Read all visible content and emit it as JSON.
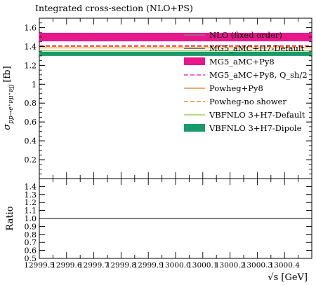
{
  "chart_data": {
    "type": "band",
    "title": "Integrated cross-section (NLO+PS)",
    "ylabel_main": "σ",
    "ylabel_sub": "pp→e⁺νμ⁺νjj",
    "ylabel_unit": "[fb]",
    "xlabel": "√s [GeV]",
    "ratio_ylabel": "Ratio",
    "xlim": [
      12999.5,
      13000.5
    ],
    "ylim": [
      0,
      1.7
    ],
    "ratio_ylim": [
      0.5,
      1.5
    ],
    "x_ticks": [
      "12999.5",
      "12999.6",
      "12999.7",
      "12999.8",
      "12999.9",
      "13000.0",
      "13000.1",
      "13000.2",
      "13000.3",
      "13000.4"
    ],
    "x_tick_values": [
      12999.5,
      12999.6,
      12999.7,
      12999.8,
      12999.9,
      13000.0,
      13000.1,
      13000.2,
      13000.3,
      13000.4
    ],
    "y_ticks": [
      "0.2",
      "0.4",
      "0.6",
      "0.8",
      "1",
      "1.2",
      "1.4",
      "1.6"
    ],
    "y_tick_values": [
      0.2,
      0.4,
      0.6,
      0.8,
      1.0,
      1.2,
      1.4,
      1.6
    ],
    "ratio_y_ticks": [
      "0.5",
      "0.6",
      "0.7",
      "0.8",
      "0.9",
      "1.0",
      "1.1",
      "1.2",
      "1.3",
      "1.4"
    ],
    "ratio_y_tick_values": [
      0.5,
      0.6,
      0.7,
      0.8,
      0.9,
      1.0,
      1.1,
      1.2,
      1.3,
      1.4
    ],
    "ratio_reference": 1.0,
    "legend_position": "top-right",
    "series": [
      {
        "name": "NLO (fixed order)",
        "value": 1.52,
        "style": "line",
        "color": "#888888"
      },
      {
        "name": "MG5_aMC+H7-Default",
        "value": 1.51,
        "style": "line",
        "color": "#3a3a3a"
      },
      {
        "name": "MG5_aMC+Py8",
        "value": 1.5,
        "low": 1.455,
        "high": 1.545,
        "style": "band",
        "color": "#e8188c"
      },
      {
        "name": "MG5_aMC+Py8, Q_sh/2",
        "value": 1.41,
        "style": "dashed",
        "color": "#e8188c"
      },
      {
        "name": "Powheg+Py8",
        "value": 1.385,
        "style": "line",
        "color": "#e87a1c"
      },
      {
        "name": "Powheg-no shower",
        "value": 1.4,
        "style": "dashed",
        "color": "#e87a1c"
      },
      {
        "name": "VBFNLO 3+H7-Default",
        "value": 1.355,
        "style": "line",
        "color": "#8ec63f"
      },
      {
        "name": "VBFNLO 3+H7-Dipole",
        "value": 1.325,
        "low": 1.3,
        "high": 1.345,
        "style": "band",
        "color": "#1a9a6a"
      }
    ]
  }
}
